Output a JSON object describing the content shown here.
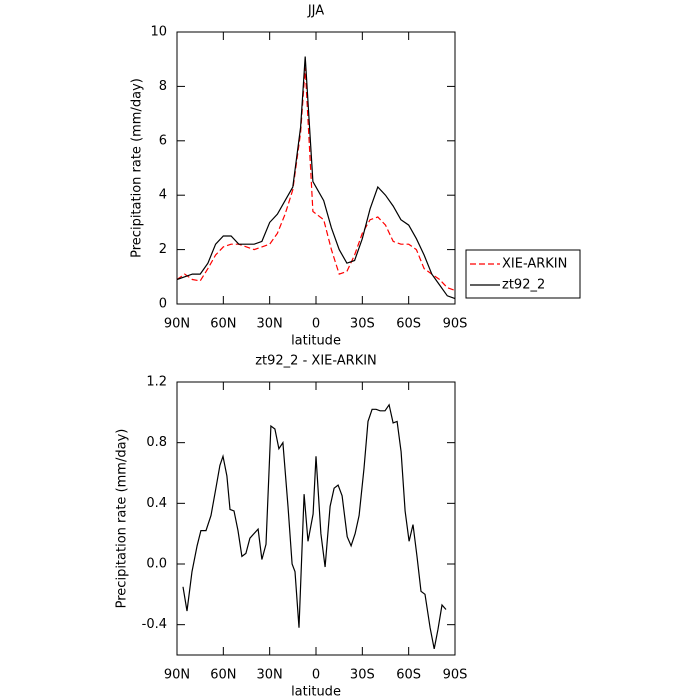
{
  "chart_data": [
    {
      "type": "line",
      "title": "JJA",
      "xlabel": "latitude",
      "ylabel": "Precipitation rate (mm/day)",
      "x": [
        90,
        85,
        80,
        75,
        70,
        65,
        60,
        55,
        50,
        45,
        40,
        35,
        30,
        25,
        20,
        15,
        10,
        7,
        2,
        -5,
        -10,
        -15,
        -20,
        -25,
        -30,
        -35,
        -40,
        -45,
        -50,
        -55,
        -60,
        -65,
        -70,
        -75,
        -80,
        -85,
        -90
      ],
      "series": [
        {
          "name": "XIE-ARKIN",
          "color": "#ff0000",
          "style": "dashed",
          "values": [
            0.9,
            1.1,
            0.9,
            0.85,
            1.3,
            1.8,
            2.1,
            2.2,
            2.2,
            2.1,
            2.0,
            2.1,
            2.2,
            2.6,
            3.3,
            4.2,
            6.3,
            8.7,
            3.4,
            3.1,
            2.0,
            1.1,
            1.2,
            1.8,
            2.6,
            3.1,
            3.2,
            2.9,
            2.3,
            2.2,
            2.2,
            2.0,
            1.3,
            1.1,
            0.9,
            0.6,
            0.5
          ]
        },
        {
          "name": "zt92_2",
          "color": "#000000",
          "style": "solid",
          "values": [
            0.9,
            1.0,
            1.1,
            1.1,
            1.5,
            2.2,
            2.5,
            2.5,
            2.2,
            2.2,
            2.2,
            2.3,
            3.0,
            3.3,
            3.8,
            4.3,
            6.5,
            9.1,
            4.5,
            3.8,
            2.8,
            2.0,
            1.5,
            1.6,
            2.4,
            3.5,
            4.3,
            4.0,
            3.6,
            3.1,
            2.9,
            2.4,
            1.8,
            1.1,
            0.7,
            0.3,
            0.2
          ]
        }
      ],
      "xlim": [
        90,
        -90
      ],
      "xticks": [
        {
          "value": 90,
          "label": "90N"
        },
        {
          "value": 60,
          "label": "60N"
        },
        {
          "value": 30,
          "label": "30N"
        },
        0,
        {
          "value": -30,
          "label": "30S"
        },
        {
          "value": -60,
          "label": "60S"
        },
        {
          "value": -90,
          "label": "90S"
        }
      ],
      "ylim": [
        0,
        10
      ],
      "yticks": [
        0,
        2,
        4,
        6,
        8,
        10
      ],
      "legend": "right"
    },
    {
      "type": "line",
      "title": "zt92_2 - XIE-ARKIN",
      "xlabel": "latitude",
      "ylabel": "Precipitation rate (mm/day)",
      "x": [
        86.1,
        83.5,
        80.3,
        77.0,
        74.5,
        71.2,
        68.0,
        64.8,
        62.2,
        60.2,
        57.7,
        55.7,
        53.1,
        50.5,
        48.0,
        45.4,
        42.8,
        37.5,
        35.0,
        32.4,
        29.2,
        26.6,
        24.0,
        21.4,
        18.1,
        15.5,
        13.6,
        11.0,
        7.7,
        5.2,
        1.9,
        0,
        -3.2,
        -5.9,
        -9.1,
        -11.7,
        -14.3,
        -16.9,
        -20.2,
        -22.7,
        -25.3,
        -27.9,
        -31.1,
        -33.7,
        -36.3,
        -38.9,
        -41.5,
        -44.7,
        -47.3,
        -49.9,
        -52.5,
        -55.1,
        -57.7,
        -60.3,
        -62.8,
        -65.4,
        -68.0,
        -70.6,
        -73.9,
        -76.5,
        -79.0,
        -81.6,
        -84.2
      ],
      "series": [
        {
          "color": "#000000",
          "style": "solid",
          "values": [
            -0.15,
            -0.31,
            -0.05,
            0.12,
            0.22,
            0.22,
            0.32,
            0.5,
            0.65,
            0.71,
            0.58,
            0.36,
            0.35,
            0.22,
            0.05,
            0.07,
            0.17,
            0.23,
            0.03,
            0.13,
            0.91,
            0.89,
            0.76,
            0.8,
            0.38,
            0.0,
            -0.05,
            -0.42,
            0.46,
            0.15,
            0.33,
            0.71,
            0.2,
            -0.02,
            0.38,
            0.5,
            0.52,
            0.45,
            0.18,
            0.12,
            0.2,
            0.32,
            0.63,
            0.94,
            1.02,
            1.02,
            1.01,
            1.01,
            1.05,
            0.93,
            0.94,
            0.74,
            0.35,
            0.15,
            0.26,
            0.05,
            -0.18,
            -0.2,
            -0.42,
            -0.56,
            -0.43,
            -0.27,
            -0.3
          ]
        }
      ],
      "xlim": [
        90,
        -90
      ],
      "xticks": [
        {
          "value": 90,
          "label": "90N"
        },
        {
          "value": 60,
          "label": "60N"
        },
        {
          "value": 30,
          "label": "30N"
        },
        0,
        {
          "value": -30,
          "label": "30S"
        },
        {
          "value": -60,
          "label": "60S"
        },
        {
          "value": -90,
          "label": "90S"
        }
      ],
      "ylim": [
        -0.6,
        1.2
      ],
      "yticks": [
        -0.4,
        {
          "value": 0,
          "label": "0.0"
        },
        0.4,
        0.8,
        1.2
      ]
    }
  ]
}
